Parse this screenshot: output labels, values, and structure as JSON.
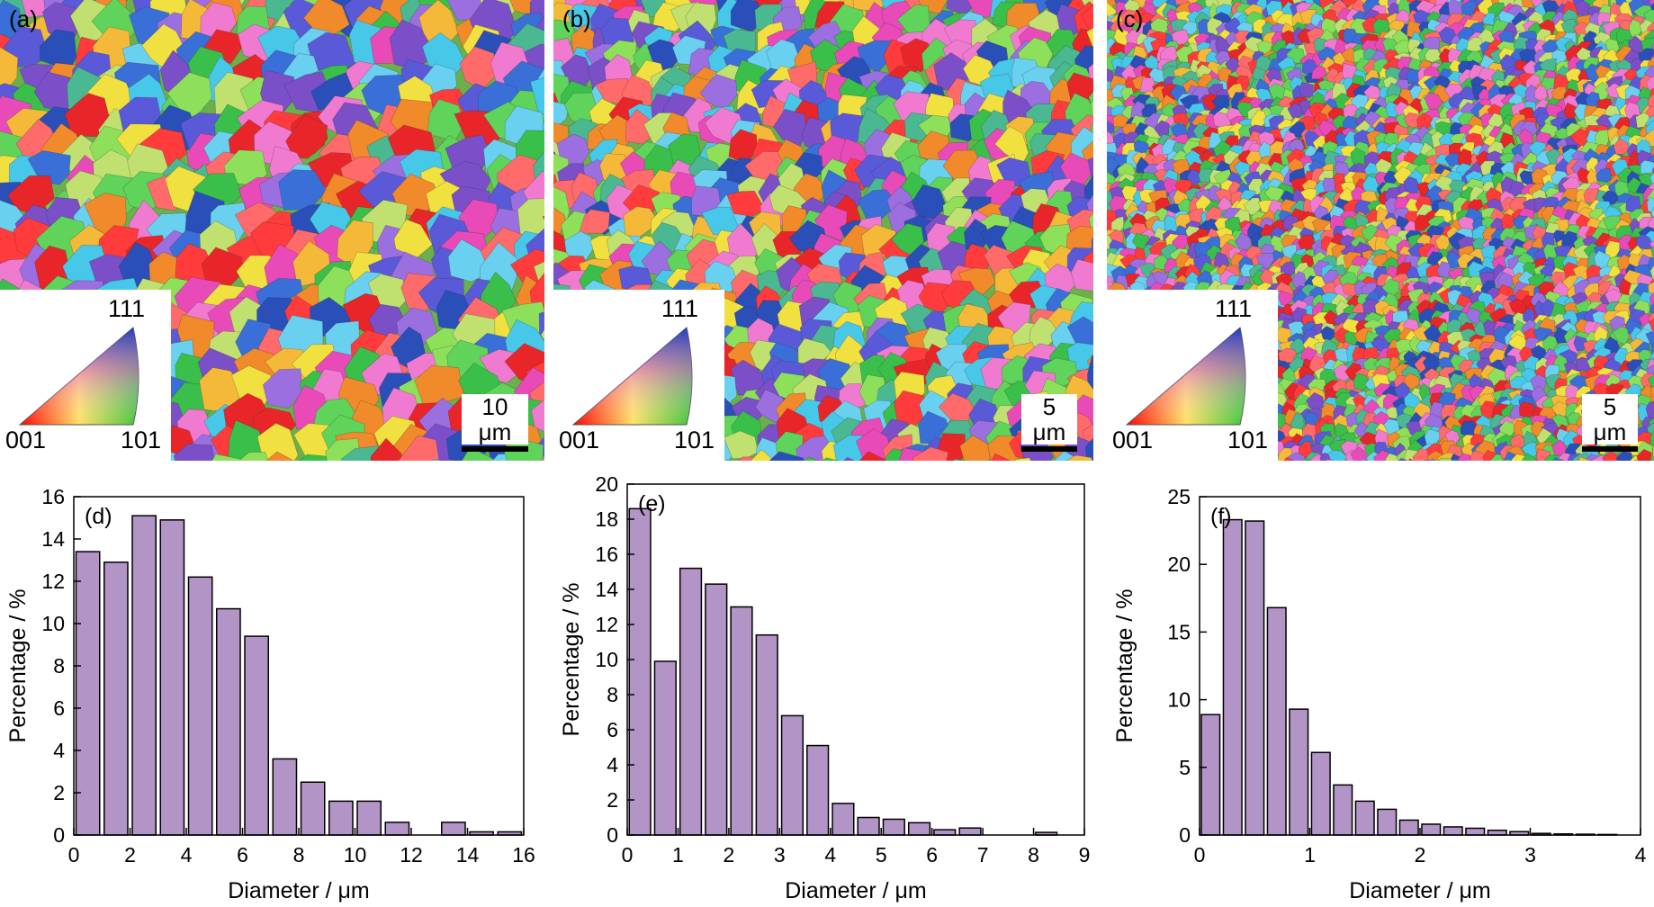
{
  "panels": {
    "a": {
      "label": "(a)",
      "scale": "10 μm"
    },
    "b": {
      "label": "(b)",
      "scale": "5 μm"
    },
    "c": {
      "label": "(c)",
      "scale": "5 μm"
    }
  },
  "ipf_legend": {
    "top": "111",
    "left": "001",
    "right": "101"
  },
  "chart_data": [
    {
      "type": "bar",
      "panel_label": "(d)",
      "xlabel": "Diameter / μm",
      "ylabel": "Percentage / %",
      "xlim": [
        0,
        16
      ],
      "ylim": [
        0,
        16
      ],
      "xticks": [
        0,
        2,
        4,
        6,
        8,
        10,
        12,
        14,
        16
      ],
      "yticks": [
        0,
        2,
        4,
        6,
        8,
        10,
        12,
        14,
        16
      ],
      "bin_width": 1,
      "x": [
        0.5,
        1.5,
        2.5,
        3.5,
        4.5,
        5.5,
        6.5,
        7.5,
        8.5,
        9.5,
        10.5,
        11.5,
        12.5,
        13.5,
        14.5,
        15.5
      ],
      "values": [
        13.4,
        12.9,
        15.1,
        14.9,
        12.2,
        10.7,
        9.4,
        3.6,
        2.5,
        1.6,
        1.6,
        0.6,
        0.0,
        0.6,
        0.15,
        0.15
      ],
      "bar_color": "#b394c6"
    },
    {
      "type": "bar",
      "panel_label": "(e)",
      "xlabel": "Diameter / μm",
      "ylabel": "Percentage / %",
      "xlim": [
        0,
        9
      ],
      "ylim": [
        0,
        20
      ],
      "xticks": [
        0,
        1,
        2,
        3,
        4,
        5,
        6,
        7,
        8,
        9
      ],
      "yticks": [
        0,
        2,
        4,
        6,
        8,
        10,
        12,
        14,
        16,
        18,
        20
      ],
      "bin_width": 0.5,
      "x": [
        0.25,
        0.75,
        1.25,
        1.75,
        2.25,
        2.75,
        3.25,
        3.75,
        4.25,
        4.75,
        5.25,
        5.75,
        6.25,
        6.75,
        7.25,
        7.75,
        8.25
      ],
      "values": [
        18.6,
        9.9,
        15.2,
        14.3,
        13.0,
        11.4,
        6.8,
        5.1,
        1.8,
        1.0,
        0.9,
        0.7,
        0.3,
        0.4,
        0.0,
        0.0,
        0.15
      ],
      "bar_color": "#b394c6"
    },
    {
      "type": "bar",
      "panel_label": "(f)",
      "xlabel": "Diameter / μm",
      "ylabel": "Percentage / %",
      "xlim": [
        0,
        4
      ],
      "ylim": [
        0,
        25
      ],
      "xticks": [
        0,
        1,
        2,
        3,
        4
      ],
      "yticks": [
        0,
        5,
        10,
        15,
        20,
        25
      ],
      "bin_width": 0.2,
      "x": [
        0.1,
        0.3,
        0.5,
        0.7,
        0.9,
        1.1,
        1.3,
        1.5,
        1.7,
        1.9,
        2.1,
        2.3,
        2.5,
        2.7,
        2.9,
        3.1,
        3.3,
        3.5,
        3.7
      ],
      "values": [
        8.9,
        23.3,
        23.2,
        16.8,
        9.3,
        6.1,
        3.7,
        2.5,
        1.9,
        1.1,
        0.8,
        0.6,
        0.5,
        0.35,
        0.25,
        0.12,
        0.08,
        0.06,
        0.04
      ],
      "bar_color": "#b394c6"
    }
  ]
}
